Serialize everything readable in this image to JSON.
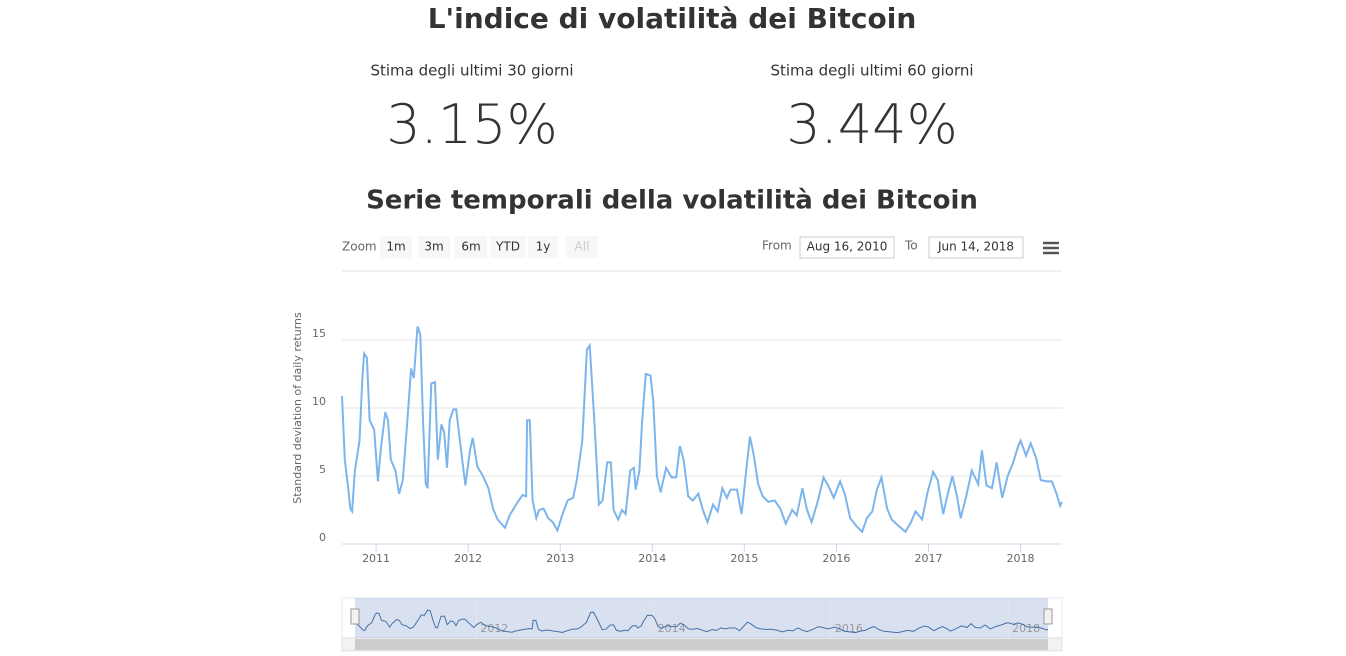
{
  "header": {
    "title": "L'indice di volatilità dei Bitcoin",
    "stats": [
      {
        "label": "Stima degli ultimi 30 giorni",
        "value": "3.15%"
      },
      {
        "label": "Stima degli ultimi 60 giorni",
        "value": "3.44%"
      }
    ]
  },
  "toolbar": {
    "zoom_label": "Zoom",
    "zoom_buttons": [
      "1m",
      "3m",
      "6m",
      "YTD",
      "1y",
      "All"
    ],
    "from_label": "From",
    "from_value": "Aug 16, 2010",
    "to_label": "To",
    "to_value": "Jun 14, 2018"
  },
  "chart_data": {
    "type": "line",
    "title": "Serie temporali della volatilità dei Bitcoin",
    "y_label": "Standard deviation of daily returns",
    "x": [
      2010.63,
      2010.66,
      2010.7,
      2010.72,
      2010.74,
      2010.77,
      2010.82,
      2010.85,
      2010.87,
      2010.9,
      2010.93,
      2010.98,
      2011.02,
      2011.05,
      2011.1,
      2011.13,
      2011.16,
      2011.21,
      2011.25,
      2011.29,
      2011.34,
      2011.38,
      2011.41,
      2011.45,
      2011.48,
      2011.51,
      2011.54,
      2011.56,
      2011.6,
      2011.64,
      2011.67,
      2011.71,
      2011.74,
      2011.77,
      2011.8,
      2011.84,
      2011.87,
      2011.91,
      2011.97,
      2012.02,
      2012.05,
      2012.1,
      2012.16,
      2012.22,
      2012.27,
      2012.32,
      2012.4,
      2012.45,
      2012.52,
      2012.59,
      2012.63,
      2012.64,
      2012.67,
      2012.7,
      2012.74,
      2012.77,
      2012.82,
      2012.87,
      2012.92,
      2012.97,
      2013.02,
      2013.08,
      2013.14,
      2013.18,
      2013.24,
      2013.29,
      2013.32,
      2013.37,
      2013.42,
      2013.46,
      2013.51,
      2013.55,
      2013.58,
      2013.63,
      2013.67,
      2013.71,
      2013.76,
      2013.8,
      2013.82,
      2013.86,
      2013.89,
      2013.93,
      2013.98,
      2014.01,
      2014.05,
      2014.09,
      2014.15,
      2014.21,
      2014.26,
      2014.3,
      2014.34,
      2014.39,
      2014.44,
      2014.5,
      2014.55,
      2014.6,
      2014.66,
      2014.71,
      2014.76,
      2014.81,
      2014.85,
      2014.92,
      2014.97,
      2015.02,
      2015.06,
      2015.1,
      2015.15,
      2015.2,
      2015.26,
      2015.33,
      2015.39,
      2015.45,
      2015.52,
      2015.57,
      2015.63,
      2015.68,
      2015.73,
      2015.8,
      2015.86,
      2015.91,
      2015.97,
      2016.04,
      2016.09,
      2016.15,
      2016.22,
      2016.28,
      2016.33,
      2016.39,
      2016.44,
      2016.49,
      2016.55,
      2016.6,
      2016.68,
      2016.75,
      2016.81,
      2016.86,
      2016.93,
      2016.99,
      2017.05,
      2017.1,
      2017.16,
      2017.21,
      2017.26,
      2017.31,
      2017.35,
      2017.41,
      2017.47,
      2017.54,
      2017.58,
      2017.63,
      2017.69,
      2017.74,
      2017.8,
      2017.86,
      2017.92,
      2017.97,
      2018.0,
      2018.06,
      2018.11,
      2018.17,
      2018.22,
      2018.29,
      2018.34,
      2018.39,
      2018.43,
      2018.45
    ],
    "series": [
      {
        "color": "#7cb5ec",
        "values": [
          10.9,
          6.2,
          4.0,
          2.6,
          2.4,
          5.4,
          7.6,
          12.1,
          14.0,
          13.7,
          9.1,
          8.4,
          4.6,
          6.9,
          9.7,
          9.1,
          6.2,
          5.4,
          3.7,
          4.7,
          9.1,
          12.9,
          12.2,
          16.0,
          15.4,
          9.1,
          4.4,
          4.1,
          11.8,
          11.9,
          6.2,
          8.8,
          8.2,
          5.6,
          9.1,
          9.9,
          9.9,
          7.6,
          4.3,
          6.9,
          7.8,
          5.7,
          5.0,
          4.1,
          2.6,
          1.8,
          1.2,
          2.1,
          2.9,
          3.6,
          3.5,
          9.1,
          9.1,
          3.2,
          1.9,
          2.5,
          2.6,
          1.9,
          1.6,
          1.0,
          2.1,
          3.2,
          3.4,
          4.7,
          7.6,
          14.3,
          14.6,
          9.1,
          2.9,
          3.2,
          6.0,
          6.0,
          2.5,
          1.8,
          2.5,
          2.2,
          5.4,
          5.6,
          4.0,
          5.4,
          9.1,
          12.5,
          12.4,
          10.6,
          5.0,
          3.8,
          5.6,
          4.9,
          4.9,
          7.2,
          6.2,
          3.5,
          3.2,
          3.7,
          2.5,
          1.6,
          2.9,
          2.4,
          4.1,
          3.4,
          4.0,
          4.0,
          2.2,
          5.4,
          7.9,
          6.6,
          4.4,
          3.5,
          3.1,
          3.2,
          2.6,
          1.5,
          2.5,
          2.1,
          4.1,
          2.5,
          1.6,
          3.2,
          4.9,
          4.3,
          3.4,
          4.6,
          3.7,
          1.9,
          1.3,
          0.9,
          1.9,
          2.4,
          4.0,
          4.9,
          2.6,
          1.8,
          1.3,
          0.9,
          1.6,
          2.4,
          1.8,
          3.8,
          5.3,
          4.7,
          2.2,
          3.7,
          5.0,
          3.5,
          1.9,
          3.5,
          5.4,
          4.4,
          6.9,
          4.3,
          4.1,
          6.0,
          3.4,
          5.0,
          6.0,
          7.1,
          7.6,
          6.5,
          7.4,
          6.3,
          4.7,
          4.6,
          4.6,
          3.7,
          2.8,
          3.1
        ]
      }
    ],
    "xlim": [
      2010.63,
      2018.45
    ],
    "xticks": [
      2011,
      2012,
      2013,
      2014,
      2015,
      2016,
      2017,
      2018
    ],
    "ylim": [
      0,
      20
    ],
    "yticks": [
      0,
      5,
      10,
      15
    ],
    "grid": true,
    "navigator_ticks": [
      2012,
      2014,
      2016,
      2018
    ]
  }
}
